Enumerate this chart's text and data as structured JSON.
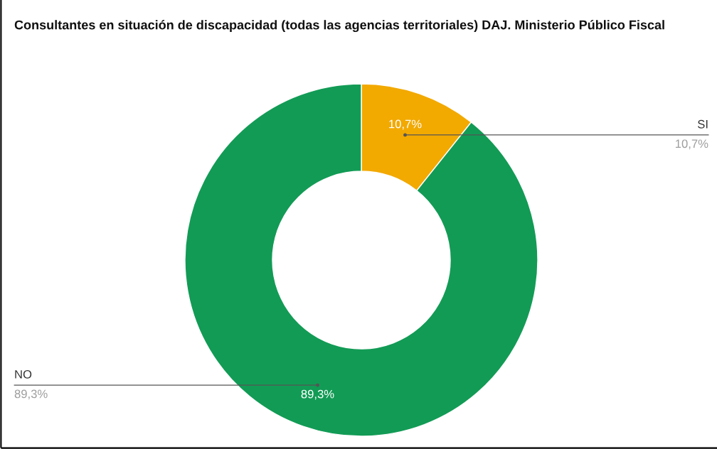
{
  "chart_data": {
    "type": "donut",
    "title": "Consultantes en situación de discapacidad (todas las agencias territoriales) DAJ. Ministerio Público Fiscal",
    "categories": [
      "SI",
      "NO"
    ],
    "values": [
      10.7,
      89.3
    ],
    "colors": [
      "#f2a900",
      "#129b55"
    ],
    "value_labels": [
      "10,7%",
      "89,3%"
    ]
  }
}
